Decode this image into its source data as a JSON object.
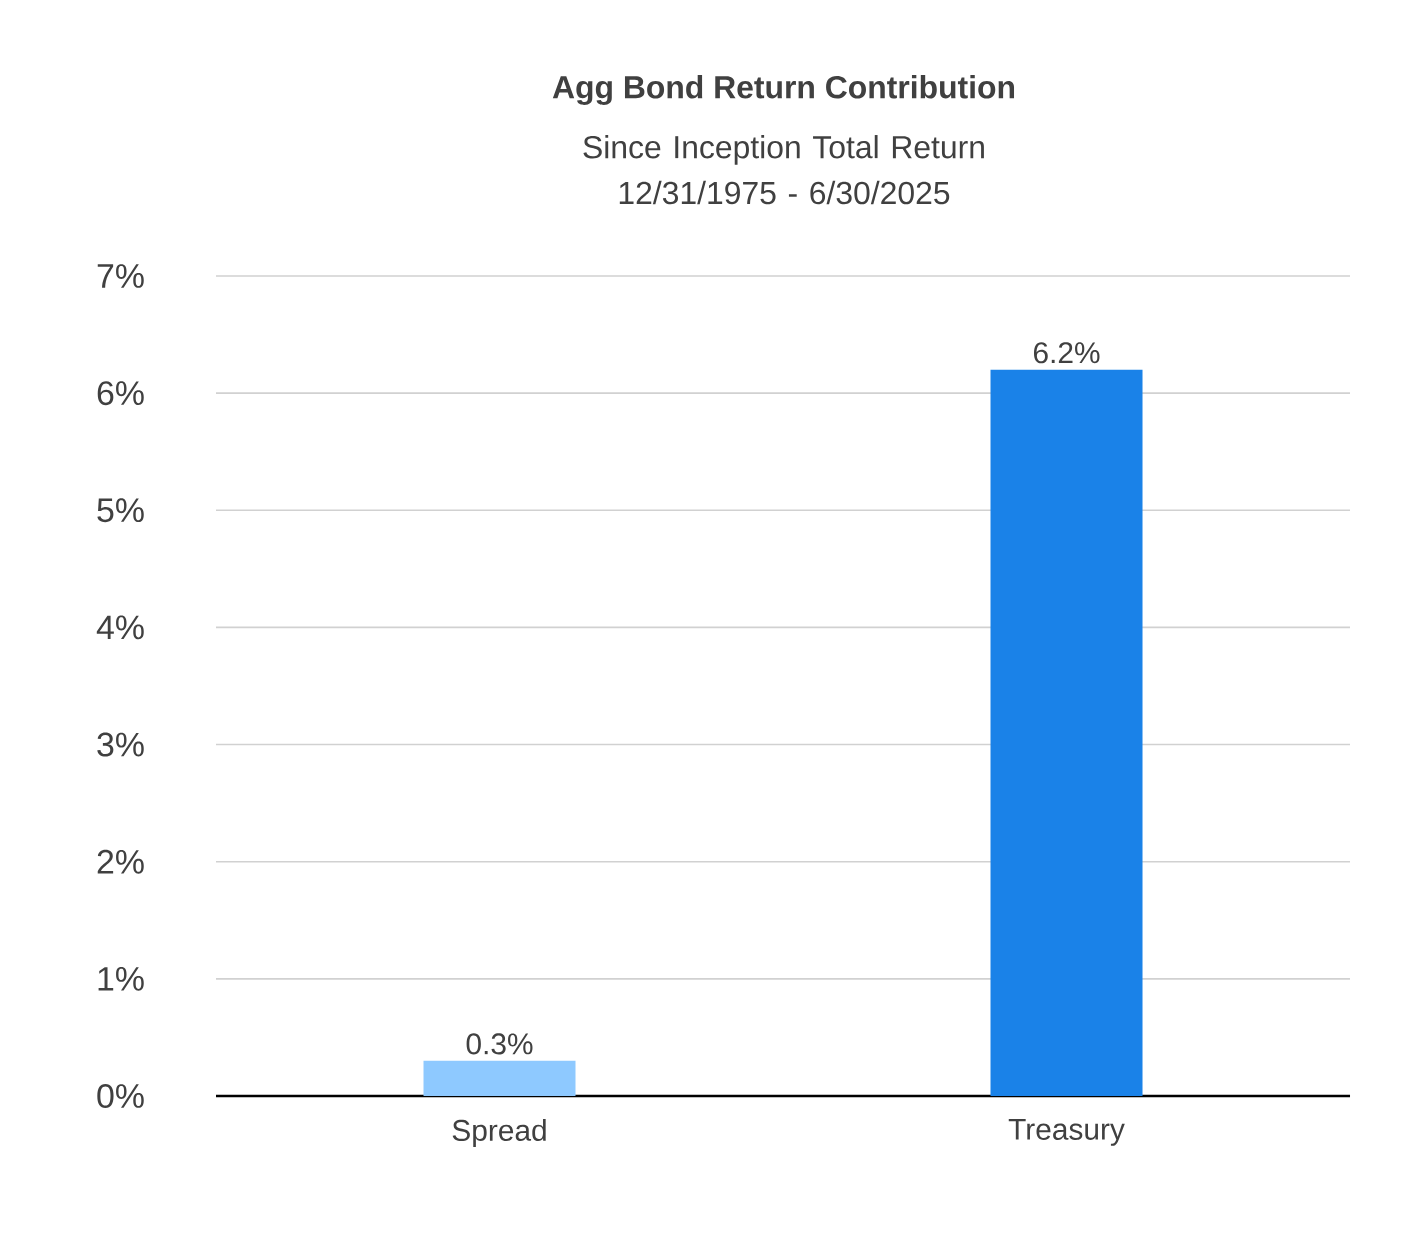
{
  "chart_data": {
    "type": "bar",
    "title": "Agg Bond Return Contribution",
    "subtitle": "Since Inception Total Return 12/31/1975 - 6/30/2025",
    "categories": [
      "Spread",
      "Treasury"
    ],
    "values": [
      0.3,
      6.2
    ],
    "colors": [
      "#8ec9ff",
      "#1a82e8"
    ],
    "value_labels": [
      "0.3%",
      "6.2%"
    ],
    "ylim": [
      0,
      7
    ],
    "yticks": [
      {
        "value": 0,
        "label": "0%"
      },
      {
        "value": 1,
        "label": "1%"
      },
      {
        "value": 2,
        "label": "2%"
      },
      {
        "value": 3,
        "label": "3%"
      },
      {
        "value": 4,
        "label": "4%"
      },
      {
        "value": 5,
        "label": "5%"
      },
      {
        "value": 6,
        "label": "6%"
      },
      {
        "value": 7,
        "label": "7%"
      }
    ],
    "grid": "y"
  }
}
